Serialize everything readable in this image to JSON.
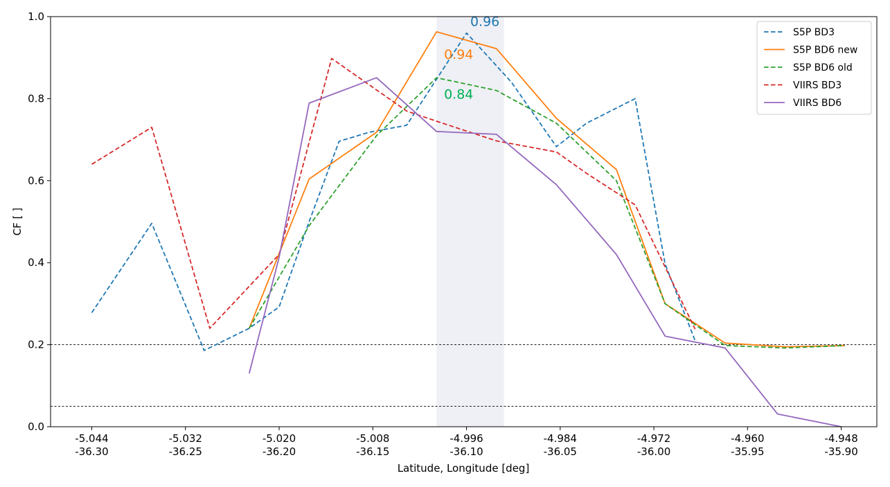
{
  "chart_data": {
    "type": "line",
    "xlabel": "Latitude, Longitude [deg]",
    "ylabel": "CF [ ]",
    "ylim": [
      0,
      1.0
    ],
    "xlim": [
      -36.322,
      -35.881
    ],
    "grid": false,
    "legend_position": "top-right",
    "yticks": [
      0.0,
      0.2,
      0.4,
      0.6,
      0.8,
      1.0
    ],
    "ytick_labels": [
      "0.0",
      "0.2",
      "0.4",
      "0.6",
      "0.8",
      "1.0"
    ],
    "xticks": [
      {
        "lon": -36.3,
        "lat_label": "-5.044",
        "lon_label": "-36.30"
      },
      {
        "lon": -36.25,
        "lat_label": "-5.032",
        "lon_label": "-36.25"
      },
      {
        "lon": -36.2,
        "lat_label": "-5.020",
        "lon_label": "-36.20"
      },
      {
        "lon": -36.15,
        "lat_label": "-5.008",
        "lon_label": "-36.15"
      },
      {
        "lon": -36.1,
        "lat_label": "-4.996",
        "lon_label": "-36.10"
      },
      {
        "lon": -36.05,
        "lat_label": "-4.984",
        "lon_label": "-36.05"
      },
      {
        "lon": -36.0,
        "lat_label": "-4.972",
        "lon_label": "-36.00"
      },
      {
        "lon": -35.95,
        "lat_label": "-4.960",
        "lon_label": "-35.95"
      },
      {
        "lon": -35.9,
        "lat_label": "-4.948",
        "lon_label": "-35.90"
      }
    ],
    "threshold_lines": [
      0.2,
      0.05
    ],
    "highlight_band": {
      "x_start": -36.116,
      "x_end": -36.08,
      "color": "#eef0f5"
    },
    "series": [
      {
        "name": "S5P BD3",
        "color": "#1f77b4",
        "style": "dashed",
        "x": [
          -36.3,
          -36.268,
          -36.24,
          -36.216,
          -36.2,
          -36.184,
          -36.168,
          -36.152,
          -36.132,
          -36.1,
          -36.076,
          -36.052,
          -36.036,
          -36.01,
          -35.994,
          -35.978
        ],
        "y": [
          0.278,
          0.496,
          0.186,
          0.24,
          0.292,
          0.5,
          0.696,
          0.718,
          0.735,
          0.96,
          0.84,
          0.683,
          0.74,
          0.8,
          0.397,
          0.21
        ]
      },
      {
        "name": "S5P BD6 new",
        "color": "#ff7f0e",
        "style": "solid",
        "x": [
          -36.216,
          -36.184,
          -36.148,
          -36.116,
          -36.084,
          -36.052,
          -36.02,
          -35.994,
          -35.962,
          -35.93,
          -35.898
        ],
        "y": [
          0.24,
          0.604,
          0.718,
          0.963,
          0.922,
          0.752,
          0.627,
          0.3,
          0.204,
          0.195,
          0.198
        ]
      },
      {
        "name": "S5P BD6 old",
        "color": "#2ca02c",
        "style": "dashed",
        "x": [
          -36.216,
          -36.184,
          -36.148,
          -36.116,
          -36.084,
          -36.052,
          -36.02,
          -35.994,
          -35.962,
          -35.93,
          -35.898
        ],
        "y": [
          0.24,
          0.49,
          0.71,
          0.851,
          0.82,
          0.74,
          0.6,
          0.3,
          0.198,
          0.192,
          0.198
        ]
      },
      {
        "name": "VIIRS BD3",
        "color": "#d62728",
        "style": "dashed",
        "x": [
          -36.3,
          -36.268,
          -36.237,
          -36.2,
          -36.172,
          -36.132,
          -36.116,
          -36.084,
          -36.052,
          -36.036,
          -36.01,
          -35.978
        ],
        "y": [
          0.64,
          0.73,
          0.24,
          0.42,
          0.898,
          0.77,
          0.745,
          0.697,
          0.67,
          0.618,
          0.541,
          0.238
        ]
      },
      {
        "name": "VIIRS BD6",
        "color": "#9467bd",
        "style": "solid",
        "x": [
          -36.216,
          -36.2,
          -36.184,
          -36.148,
          -36.116,
          -36.084,
          -36.052,
          -36.02,
          -35.994,
          -35.962,
          -35.934,
          -35.9
        ],
        "y": [
          0.13,
          0.413,
          0.789,
          0.851,
          0.72,
          0.713,
          0.59,
          0.42,
          0.221,
          0.192,
          0.031,
          0.0
        ]
      }
    ],
    "annotations": [
      {
        "text": "0.96",
        "x": -36.098,
        "y": 0.977,
        "color": "#1f77b4"
      },
      {
        "text": "0.94",
        "x": -36.112,
        "y": 0.897,
        "color": "#ff7f0e"
      },
      {
        "text": "0.84",
        "x": -36.112,
        "y": 0.8,
        "color": "#00b050"
      }
    ]
  }
}
